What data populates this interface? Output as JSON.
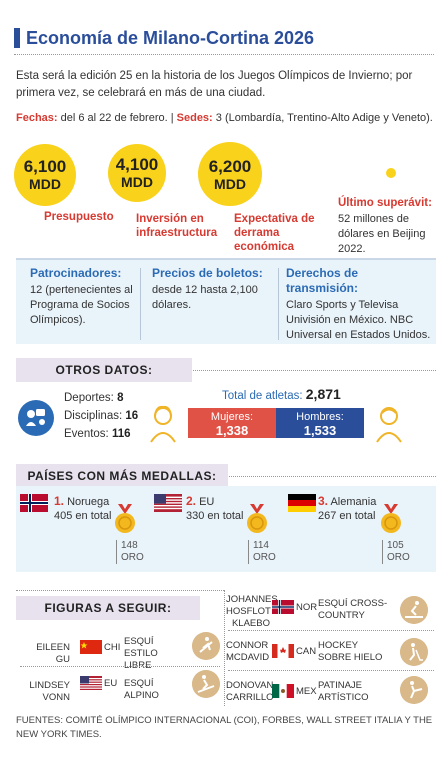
{
  "header": {
    "title": "Economía de Milano-Cortina 2026"
  },
  "intro": "Esta será la edición 25 en la historia de los Juegos Olímpicos de Invierno; por primera vez, se celebrará en más de una ciudad.",
  "dates": {
    "fechas_label": "Fechas:",
    "fechas_value": "del 6 al 22 de febrero. |",
    "sedes_label": "Sedes:",
    "sedes_value": "3 (Lombardía, Trentino-Alto Adige y Veneto)."
  },
  "stats": [
    {
      "num": "6,100",
      "unit": "MDD",
      "label": "Presupuesto"
    },
    {
      "num": "4,100",
      "unit": "MDD",
      "label": "Inversión en infraestructura"
    },
    {
      "num": "6,200",
      "unit": "MDD",
      "label": "Expectativa de derrama económica"
    }
  ],
  "surplus": {
    "label": "Último superávit:",
    "value": "52 millones de dólares en Beijing 2022."
  },
  "info": [
    {
      "heading": "Patrocinadores:",
      "body": "12 (pertenecientes al Programa de Socios Olímpicos)."
    },
    {
      "heading": "Precios de boletos:",
      "body": "desde 12 hasta 2,100 dólares."
    },
    {
      "heading": "Derechos de transmisión:",
      "body": "Claro Sports y Televisa Univisión en México. NBC Universal en Estados Unidos."
    }
  ],
  "otros": {
    "title": "OTROS DATOS:",
    "deportes_label": "Deportes:",
    "deportes": "8",
    "disciplinas_label": "Disciplinas:",
    "disciplinas": "16",
    "eventos_label": "Eventos:",
    "eventos": "116",
    "total_label": "Total de atletas:",
    "total": "2,871",
    "mujeres_label": "Mujeres:",
    "mujeres": "1,338",
    "hombres_label": "Hombres:",
    "hombres": "1,533"
  },
  "medals": {
    "title": "PAÍSES CON MÁS MEDALLAS:",
    "countries": [
      {
        "rank": "1.",
        "name": "Noruega",
        "total": "405 en total",
        "oro_num": "148",
        "oro": "ORO"
      },
      {
        "rank": "2.",
        "name": "EU",
        "total": "330 en total",
        "oro_num": "114",
        "oro": "ORO"
      },
      {
        "rank": "3.",
        "name": "Alemania",
        "total": "267 en total",
        "oro_num": "105",
        "oro": "ORO"
      }
    ]
  },
  "figures": {
    "title": "FIGURAS A SEGUIR:",
    "items": [
      {
        "name": "EILEEN GU",
        "cc": "CHI",
        "sport": "ESQUÍ ESTILO LIBRE"
      },
      {
        "name": "LINDSEY VONN",
        "cc": "EU",
        "sport": "ESQUÍ ALPINO"
      },
      {
        "name": "JOHANNES HOSFLOT KLAEBO",
        "cc": "NOR",
        "sport": "ESQUÍ CROSS-COUNTRY"
      },
      {
        "name": "CONNOR MCDAVID",
        "cc": "CAN",
        "sport": "HOCKEY SOBRE HIELO"
      },
      {
        "name": "DONOVAN CARRILLO",
        "cc": "MEX",
        "sport": "PATINAJE ARTÍSTICO"
      }
    ]
  },
  "sources": "FUENTES: COMITÉ OLÍMPICO INTERNACIONAL (COI), FORBES, WALL STREET ITALIA Y THE NEW YORK TIMES.",
  "colors": {
    "accent_blue": "#2b4e9b",
    "accent_red": "#d63a31",
    "yellow": "#f9d21c",
    "band": "#e9f3fa",
    "lavender": "#e8e2ef"
  }
}
